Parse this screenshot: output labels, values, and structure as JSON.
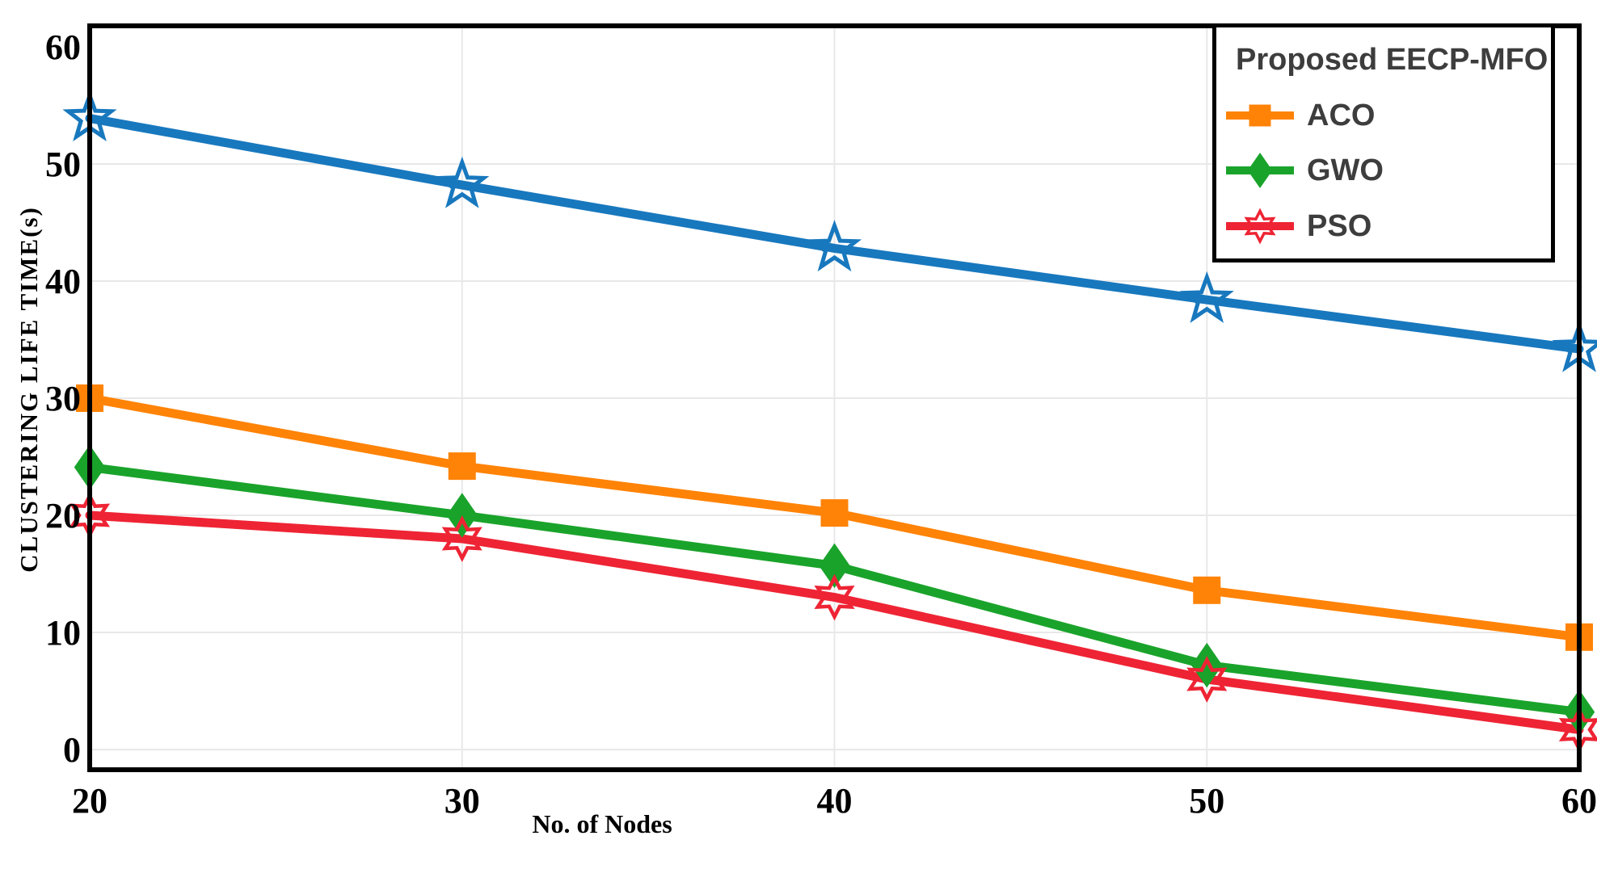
{
  "figure": {
    "type_label": "line chart figure"
  },
  "chart_data": {
    "type": "line",
    "title": "",
    "xlabel": "No. of Nodes",
    "ylabel": "CLUSTERING LIFE TIME(s)",
    "x": [
      20,
      30,
      40,
      50,
      60
    ],
    "x_tick_labels": [
      "20",
      "30",
      "40",
      "50",
      "60"
    ],
    "y_ticks": [
      0,
      10,
      20,
      30,
      40,
      50,
      60
    ],
    "xlim": [
      20,
      60
    ],
    "ylim": [
      -1.7,
      61.8
    ],
    "grid": true,
    "grid_color": "#e8e8e8",
    "frame_color": "#000000",
    "legend_position": "top-right",
    "legend_text_color": "#3d3d3d",
    "series": [
      {
        "name": "Proposed EECP-MFO",
        "color": "#1878be",
        "marker": "star5",
        "marker_fill": "open",
        "values": [
          53.9,
          48.2,
          42.8,
          38.4,
          34.2
        ]
      },
      {
        "name": "ACO",
        "color": "#ff8307",
        "marker": "square",
        "marker_fill": "solid",
        "values": [
          30.0,
          24.2,
          20.2,
          13.6,
          9.6
        ]
      },
      {
        "name": "GWO",
        "color": "#1aa32b",
        "marker": "diamond",
        "marker_fill": "solid",
        "values": [
          24.1,
          20.0,
          15.7,
          7.2,
          3.2
        ]
      },
      {
        "name": "PSO",
        "color": "#ee2434",
        "marker": "star6",
        "marker_fill": "open",
        "values": [
          20.0,
          18.0,
          13.0,
          6.0,
          1.7
        ]
      }
    ]
  }
}
